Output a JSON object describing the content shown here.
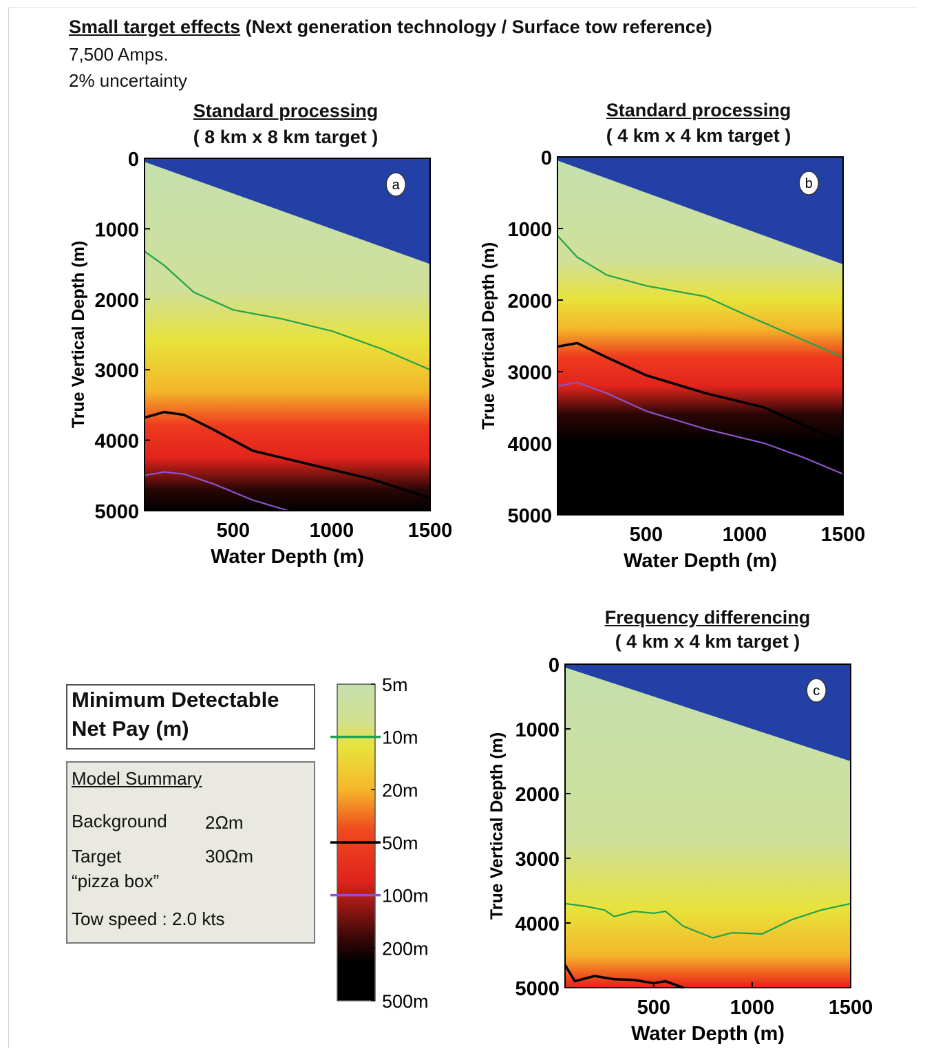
{
  "header": {
    "title_underlined": "Small target effects",
    "title_rest": " (Next generation technology / Surface tow reference)",
    "line1": "7,500 Amps.",
    "line2": "2% uncertainty"
  },
  "legend_box": {
    "line1": "Minimum Detectable",
    "line2": "Net Pay (m)"
  },
  "model_summary": {
    "heading": "Model Summary",
    "background_label": "Background",
    "background_value": "2Ωm",
    "target_label": "Target",
    "target_value": "30Ωm",
    "target_note": "“pizza box”",
    "tow_speed": "Tow speed : 2.0 kts"
  },
  "colors": {
    "blue_region": "#2240a6",
    "contour_10m": "#1fa34c",
    "contour_50m": "#000000",
    "contour_100m": "#8a55c8"
  },
  "chart_data": [
    {
      "type": "heatmap",
      "panel_label": "a",
      "title": "Standard processing",
      "subtitle": "( 8 km x 8 km target )",
      "xlabel": "Water Depth (m)",
      "ylabel": "True Vertical Depth (m)",
      "xlim": [
        50,
        1500
      ],
      "ylim": [
        0,
        5000
      ],
      "xticks": [
        "500",
        "1000",
        "1500"
      ],
      "yticks": [
        "0",
        "1000",
        "2000",
        "3000",
        "4000",
        "5000"
      ],
      "color_bands_tvd": {
        "yellow": 2600,
        "orange": 3300,
        "red": 3800,
        "dark": 4700
      },
      "contours": [
        {
          "name": "10m",
          "x": [
            50,
            150,
            300,
            500,
            750,
            1000,
            1250,
            1500
          ],
          "y": [
            1320,
            1520,
            1900,
            2150,
            2280,
            2450,
            2700,
            3000
          ]
        },
        {
          "name": "50m",
          "x": [
            50,
            150,
            250,
            400,
            600,
            900,
            1200,
            1500
          ],
          "y": [
            3680,
            3600,
            3640,
            3850,
            4150,
            4350,
            4550,
            4820
          ]
        },
        {
          "name": "100m",
          "x": [
            50,
            150,
            250,
            400,
            600,
            780
          ],
          "y": [
            4500,
            4450,
            4480,
            4620,
            4850,
            5000
          ]
        }
      ]
    },
    {
      "type": "heatmap",
      "panel_label": "b",
      "title": "Standard processing",
      "subtitle": "( 4 km x 4 km target )",
      "xlabel": "Water Depth (m)",
      "ylabel": "True Vertical Depth (m)",
      "xlim": [
        50,
        1500
      ],
      "ylim": [
        0,
        5000
      ],
      "xticks": [
        "500",
        "1000",
        "1500"
      ],
      "yticks": [
        "0",
        "1000",
        "2000",
        "3000",
        "4000",
        "5000"
      ],
      "color_bands_tvd": {
        "yellow": 2000,
        "orange": 2400,
        "red": 2800,
        "dark": 3600
      },
      "contours": [
        {
          "name": "10m",
          "x": [
            50,
            150,
            300,
            500,
            800,
            1000,
            1250,
            1500
          ],
          "y": [
            1100,
            1400,
            1650,
            1800,
            1950,
            2200,
            2500,
            2800
          ]
        },
        {
          "name": "50m",
          "x": [
            50,
            150,
            300,
            500,
            800,
            1100,
            1300,
            1500
          ],
          "y": [
            2650,
            2600,
            2800,
            3050,
            3300,
            3500,
            3750,
            3980
          ]
        },
        {
          "name": "100m",
          "x": [
            50,
            150,
            300,
            500,
            800,
            1100,
            1300,
            1500
          ],
          "y": [
            3200,
            3150,
            3300,
            3550,
            3800,
            4000,
            4200,
            4430
          ]
        }
      ]
    },
    {
      "type": "heatmap",
      "panel_label": "c",
      "title": "Frequency differencing",
      "subtitle": "( 4 km x 4 km target )",
      "xlabel": "Water Depth (m)",
      "ylabel": "True Vertical Depth (m)",
      "xlim": [
        50,
        1500
      ],
      "ylim": [
        0,
        5000
      ],
      "xticks": [
        "500",
        "1000",
        "1500"
      ],
      "yticks": [
        "0",
        "1000",
        "2000",
        "3000",
        "4000",
        "5000"
      ],
      "color_bands_tvd": {
        "yellow": 3800,
        "orange": 4500,
        "red": 4900,
        "dark": 5200
      },
      "contours": [
        {
          "name": "10m",
          "x": [
            50,
            150,
            250,
            300,
            400,
            500,
            560,
            650,
            800,
            900,
            1050,
            1200,
            1350,
            1500
          ],
          "y": [
            3700,
            3740,
            3800,
            3900,
            3820,
            3850,
            3820,
            4050,
            4230,
            4150,
            4170,
            3950,
            3800,
            3700
          ]
        },
        {
          "name": "50m",
          "x": [
            50,
            100,
            200,
            300,
            400,
            500,
            560,
            650
          ],
          "y": [
            4650,
            4900,
            4820,
            4870,
            4880,
            4930,
            4900,
            5000
          ]
        }
      ]
    },
    {
      "type": "heatmap",
      "role": "colorbar",
      "levels": [
        "5m",
        "10m",
        "20m",
        "50m",
        "100m",
        "200m",
        "500m"
      ]
    }
  ]
}
